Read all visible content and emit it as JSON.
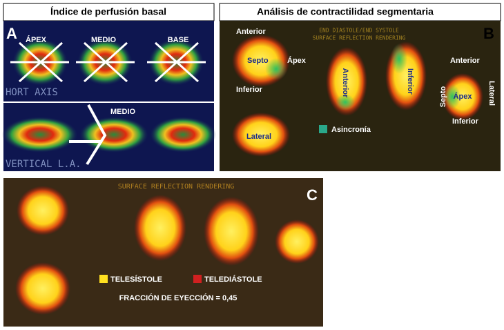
{
  "panels": {
    "a": {
      "title": "Índice de perfusión basal",
      "letter": "A",
      "labels": [
        "ÁPEX",
        "MEDIO",
        "BASE"
      ],
      "short_axis": "HORT AXIS",
      "medio": "MEDIO",
      "vertical": "VERTICAL L.A."
    },
    "b": {
      "title": "Análisis de contractilidad segmentaria",
      "letter": "B",
      "header": [
        "END DIASTOLE/END SYSTOLE",
        "SURFACE REFLECTION RENDERING"
      ],
      "left_labels": [
        "Anterior",
        "Septo",
        "Ápex",
        "Inferior",
        "Lateral"
      ],
      "rotated_labels": [
        "Anterior",
        "Inferior"
      ],
      "right_labels": [
        "Anterior",
        "Septo",
        "Ápex",
        "Lateral",
        "Inferior"
      ],
      "legend": "Asincronía"
    },
    "c": {
      "letter": "C",
      "header": "SURFACE REFLECTION RENDERING",
      "legend": [
        "TELESÍSTOLE",
        "TELEDIÁSTOLE"
      ],
      "fraction": "FRACCIÓN DE EYECCIÓN = 0,45"
    }
  }
}
